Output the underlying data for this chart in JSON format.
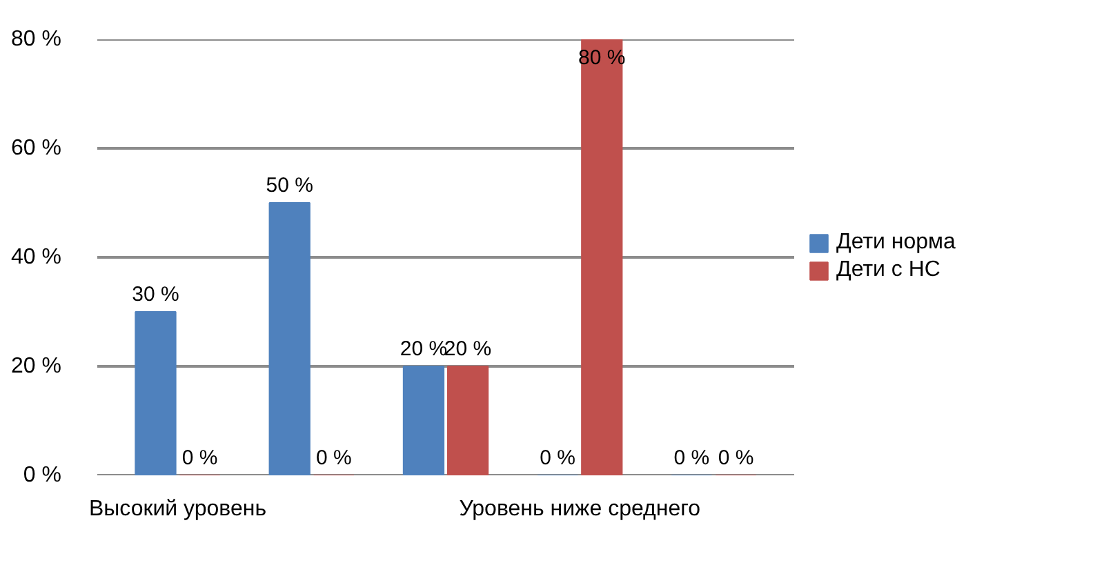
{
  "chart_data": {
    "type": "bar",
    "categories": [
      "Высокий уровень",
      null,
      null,
      "Уровень ниже среднего",
      null
    ],
    "series": [
      {
        "name": "Дети норма",
        "color": "#4f81bd",
        "values": [
          30,
          50,
          20,
          0,
          0
        ],
        "value_labels": [
          "30 %",
          "50 %",
          "20 %",
          "0 %",
          "0 %"
        ]
      },
      {
        "name": "Дети с НС",
        "color": "#c0504d",
        "values": [
          0,
          0,
          20,
          80,
          0
        ],
        "value_labels": [
          "0 %",
          "0 %",
          "20 %",
          "80 %",
          "0 %"
        ]
      }
    ],
    "ylim": [
      0,
      80
    ],
    "yticks": [
      {
        "value": 0,
        "label": "0 %"
      },
      {
        "value": 20,
        "label": "20 %"
      },
      {
        "value": 40,
        "label": "40 %"
      },
      {
        "value": 60,
        "label": "60 %"
      },
      {
        "value": 80,
        "label": "80 %"
      }
    ],
    "grid": "y",
    "legend": "right"
  }
}
